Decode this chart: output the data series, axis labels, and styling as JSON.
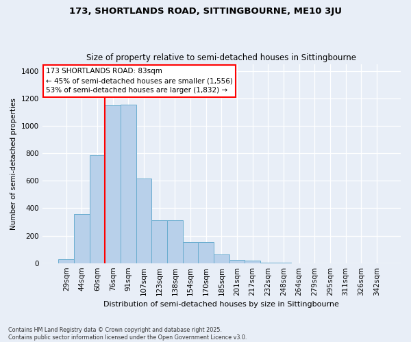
{
  "title_line1": "173, SHORTLANDS ROAD, SITTINGBOURNE, ME10 3JU",
  "title_line2": "Size of property relative to semi-detached houses in Sittingbourne",
  "xlabel": "Distribution of semi-detached houses by size in Sittingbourne",
  "ylabel": "Number of semi-detached properties",
  "categories": [
    "29sqm",
    "44sqm",
    "60sqm",
    "76sqm",
    "91sqm",
    "107sqm",
    "123sqm",
    "138sqm",
    "154sqm",
    "170sqm",
    "185sqm",
    "201sqm",
    "217sqm",
    "232sqm",
    "248sqm",
    "264sqm",
    "279sqm",
    "295sqm",
    "311sqm",
    "326sqm",
    "342sqm"
  ],
  "values": [
    30,
    355,
    785,
    1150,
    1155,
    615,
    310,
    310,
    155,
    155,
    65,
    25,
    20,
    5,
    5,
    0,
    0,
    0,
    0,
    0,
    0
  ],
  "bar_color": "#b8d0ea",
  "bar_edge_color": "#6aadcf",
  "ref_line_index": 3,
  "ref_line_color": "red",
  "annotation_text": "173 SHORTLANDS ROAD: 83sqm\n← 45% of semi-detached houses are smaller (1,556)\n53% of semi-detached houses are larger (1,832) →",
  "annotation_box_color": "white",
  "annotation_box_edge": "red",
  "ylim": [
    0,
    1450
  ],
  "yticks": [
    0,
    200,
    400,
    600,
    800,
    1000,
    1200,
    1400
  ],
  "footer": "Contains HM Land Registry data © Crown copyright and database right 2025.\nContains public sector information licensed under the Open Government Licence v3.0.",
  "bg_color": "#e8eef7",
  "plot_bg_color": "#e8eef7",
  "title_fontsize": 9.5,
  "subtitle_fontsize": 8.5
}
